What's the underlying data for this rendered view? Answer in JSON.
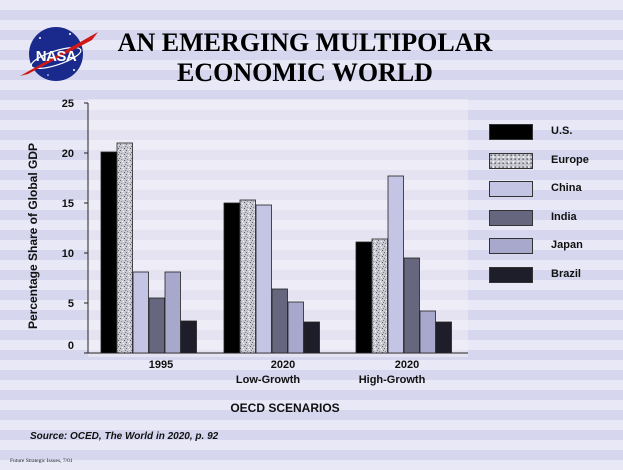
{
  "title_line1": "AN EMERGING MULTIPOLAR",
  "title_line2": "ECONOMIC WORLD",
  "logo": {
    "icon": "nasa-logo",
    "text": "NASA"
  },
  "source_text": "Source:  OCED, The World in 2020, p. 92",
  "footer_text": "Future Strategic Issues, 7/01",
  "x_axis_title": "OECD SCENARIOS",
  "colors": {
    "U.S.": "#000000",
    "Europe": "#c8c8d0",
    "China": "#c4c4e4",
    "India": "#66667e",
    "Japan": "#a8a8cc",
    "Brazil": "#1e1e2a"
  },
  "chart_data": {
    "type": "bar",
    "ylabel": "Percentage Share of Global GDP",
    "ylim": [
      0,
      25
    ],
    "yticks": [
      0,
      5,
      10,
      15,
      20,
      25
    ],
    "categories": [
      {
        "line1": "1995",
        "line2": ""
      },
      {
        "line1": "2020",
        "line2": "Low-Growth"
      },
      {
        "line1": "2020",
        "line2": "High-Growth"
      }
    ],
    "series": [
      {
        "name": "U.S.",
        "values": [
          20.1,
          15.0,
          11.1
        ]
      },
      {
        "name": "Europe",
        "values": [
          21.0,
          15.3,
          11.4
        ]
      },
      {
        "name": "China",
        "values": [
          8.1,
          14.8,
          17.7
        ]
      },
      {
        "name": "India",
        "values": [
          5.5,
          6.4,
          9.5
        ]
      },
      {
        "name": "Japan",
        "values": [
          8.1,
          5.1,
          4.2
        ]
      },
      {
        "name": "Brazil",
        "values": [
          3.2,
          3.1,
          3.1
        ]
      }
    ],
    "legend_position": "right",
    "grid": false
  }
}
